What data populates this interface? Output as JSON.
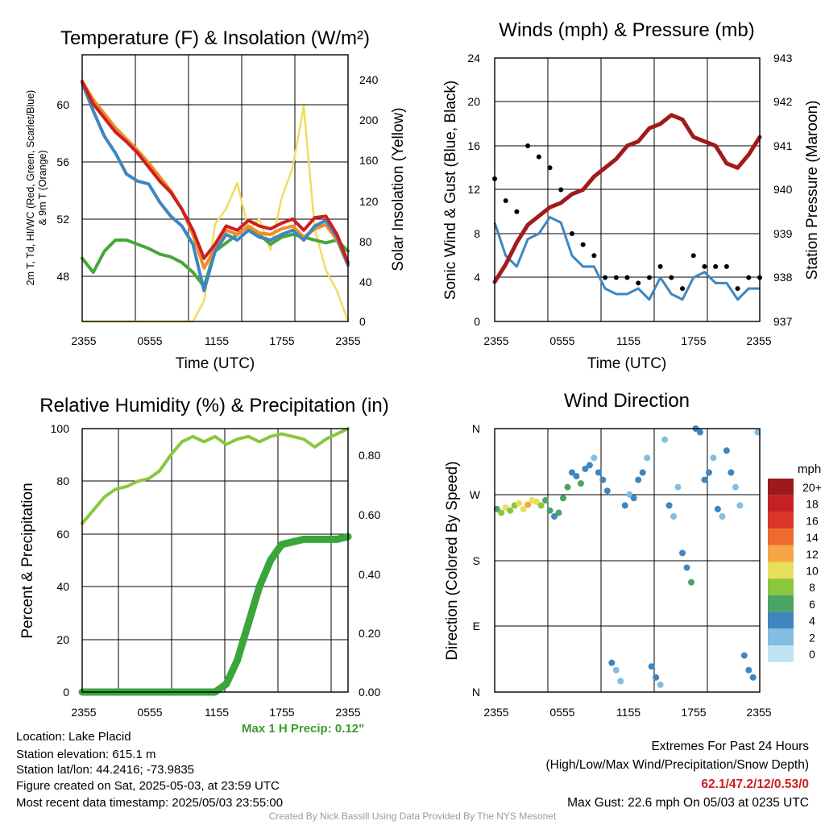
{
  "panels": {
    "temperature": {
      "title": "Temperature (F) & Insolation (W/m²)",
      "ylabel_left": "2m T, Td, HI/WC (Red, Green, Scarlet/Blue) & 9m T (Orange)",
      "ylabel_left_line1": "2m T, Td, HI/WC (Red, Green, Scarlet/Blue)",
      "ylabel_left_line2": "& 9m T (Orange)",
      "ylabel_right": "Solar Insolation (Yellow)",
      "xlabel": "Time (UTC)"
    },
    "winds": {
      "title": "Winds (mph) & Pressure (mb)",
      "ylabel_left": "Sonic Wind & Gust (Blue, Black)",
      "ylabel_right": "Station Pressure (Maroon)",
      "xlabel": "Time (UTC)"
    },
    "humidity": {
      "title": "Relative Humidity (%) & Precipitation (in)",
      "ylabel_left": "Percent & Precipitation",
      "max_precip_note": "Max 1 H Precip: 0.12\""
    },
    "direction": {
      "title": "Wind Direction",
      "ylabel_left": "Direction (Colored By Speed)",
      "legend_title": "mph",
      "legend_labels": [
        "20+",
        "18",
        "16",
        "14",
        "12",
        "10",
        "8",
        "6",
        "4",
        "2",
        "0"
      ],
      "legend_colors": [
        "#9b1a1a",
        "#c42026",
        "#d9352a",
        "#ee6a2e",
        "#f5a544",
        "#e8df5a",
        "#8cc63f",
        "#4aa466",
        "#3f86c0",
        "#84bde3",
        "#bfe3f5"
      ]
    }
  },
  "footer": {
    "location": "Location: Lake Placid",
    "elevation": "Station elevation: 615.1 m",
    "latlon": "Station lat/lon: 44.2416; -73.9835",
    "created": "Figure created on Sat, 2025-05-03, at 23:59 UTC",
    "recent": "Most recent data timestamp: 2025/05/03 23:55:00",
    "extremes_title": "Extremes For Past 24 Hours",
    "extremes_desc": "(High/Low/Max Wind/Precipitation/Snow Depth)",
    "extremes_values": "62.1/47.2/12/0.53/0",
    "max_gust": "Max Gust: 22.6 mph On 05/03 at 0235 UTC",
    "credit": "Created By Nick Bassill Using Data Provided By The NYS Mesonet"
  },
  "chart_data": [
    {
      "type": "line",
      "title": "Temperature (F) & Insolation (W/m²)",
      "xlabel": "Time (UTC)",
      "ylabel": "2m T, Td, HI/WC (Red, Green, Scarlet/Blue) & 9m T (Orange)",
      "y2label": "Solar Insolation (Yellow)",
      "xticks": [
        "2355",
        "0555",
        "1155",
        "1755",
        "2355"
      ],
      "ylim": [
        45,
        64
      ],
      "yticks": [
        48,
        52,
        56,
        60
      ],
      "y2lim": [
        0,
        260
      ],
      "y2ticks": [
        0,
        40,
        80,
        120,
        160,
        200,
        240
      ],
      "x": [
        0,
        1,
        2,
        3,
        4,
        5,
        6,
        7,
        8,
        9,
        10,
        11,
        12,
        13,
        14,
        15,
        16,
        17,
        18,
        19,
        20,
        21,
        22,
        23,
        24
      ],
      "series": [
        {
          "name": "2m T",
          "color": "#cc1f1f",
          "axis": "left",
          "values": [
            62.1,
            60.5,
            59.5,
            58.5,
            57.8,
            57.0,
            56.0,
            55.0,
            54.2,
            53.0,
            51.5,
            49.5,
            50.5,
            51.8,
            51.5,
            52.2,
            51.8,
            51.6,
            52.0,
            52.3,
            51.5,
            52.4,
            52.5,
            51.2,
            49.2
          ]
        },
        {
          "name": "9m T",
          "color": "#f28c28",
          "axis": "left",
          "values": [
            62.1,
            60.8,
            59.8,
            58.8,
            58.0,
            57.2,
            56.3,
            55.3,
            54.3,
            53.0,
            51.2,
            48.8,
            50.2,
            51.5,
            51.2,
            51.8,
            51.3,
            51.2,
            51.6,
            51.8,
            51.0,
            51.6,
            51.9,
            50.8,
            49.0
          ]
        },
        {
          "name": "HI/WC",
          "color": "#3f86c0",
          "axis": "left",
          "values": [
            62.0,
            60.0,
            58.2,
            57.0,
            55.5,
            55.0,
            54.8,
            53.5,
            52.5,
            51.8,
            50.5,
            47.2,
            50.0,
            51.2,
            50.8,
            51.5,
            51.0,
            50.8,
            51.2,
            51.5,
            50.8,
            51.8,
            52.2,
            51.0,
            49.0
          ]
        },
        {
          "name": "Td",
          "color": "#46a739",
          "axis": "left",
          "values": [
            49.5,
            48.5,
            50.0,
            50.8,
            50.8,
            50.5,
            50.2,
            49.8,
            49.6,
            49.2,
            48.5,
            47.5,
            50.0,
            50.6,
            51.2,
            51.8,
            51.2,
            50.5,
            51.0,
            51.2,
            51.0,
            50.8,
            50.6,
            50.8,
            50.0
          ]
        },
        {
          "name": "Solar Insolation",
          "color": "#f2dc5d",
          "axis": "right",
          "values": [
            0,
            0,
            0,
            0,
            0,
            0,
            0,
            0,
            0,
            0,
            0,
            20,
            95,
            110,
            135,
            90,
            100,
            70,
            120,
            150,
            210,
            90,
            50,
            30,
            0
          ]
        }
      ]
    },
    {
      "type": "line",
      "title": "Winds (mph) & Pressure (mb)",
      "xlabel": "Time (UTC)",
      "ylabel": "Sonic Wind & Gust (Blue, Black)",
      "y2label": "Station Pressure (Maroon)",
      "xticks": [
        "2355",
        "0555",
        "1155",
        "1755",
        "2355"
      ],
      "ylim": [
        0,
        24
      ],
      "yticks": [
        0,
        4,
        8,
        12,
        16,
        20,
        24
      ],
      "y2lim": [
        937,
        943
      ],
      "y2ticks": [
        937,
        938,
        939,
        940,
        941,
        942,
        943
      ],
      "x": [
        0,
        1,
        2,
        3,
        4,
        5,
        6,
        7,
        8,
        9,
        10,
        11,
        12,
        13,
        14,
        15,
        16,
        17,
        18,
        19,
        20,
        21,
        22,
        23,
        24
      ],
      "series": [
        {
          "name": "Sonic Wind",
          "color": "#3f86c0",
          "axis": "left",
          "values": [
            9,
            6,
            5,
            7.5,
            8,
            9.5,
            9,
            6,
            5,
            5,
            3,
            2.5,
            2.5,
            3,
            2,
            4,
            2.5,
            2,
            4,
            4.5,
            3.5,
            3.5,
            2,
            3,
            3
          ]
        },
        {
          "name": "Gust",
          "color": "#000000",
          "axis": "left",
          "values": [
            13,
            11,
            10,
            16,
            15,
            14,
            12,
            8,
            7,
            6,
            4,
            4,
            4,
            3.5,
            4,
            5,
            4,
            3,
            6,
            5,
            5,
            5,
            3,
            4,
            4
          ]
        },
        {
          "name": "Station Pressure",
          "color": "#a01b1b",
          "axis": "right",
          "values": [
            937.9,
            938.3,
            938.8,
            939.2,
            939.4,
            939.6,
            939.7,
            939.9,
            940.0,
            940.3,
            940.5,
            940.7,
            941.0,
            941.1,
            941.4,
            941.5,
            941.7,
            941.6,
            941.2,
            941.1,
            941.0,
            940.6,
            940.5,
            940.8,
            941.2
          ]
        }
      ]
    },
    {
      "type": "line",
      "title": "Relative Humidity (%) & Precipitation (in)",
      "ylabel": "Percent & Precipitation",
      "xticks": [
        "2355",
        "0555",
        "1155",
        "1755",
        "2355"
      ],
      "ylim": [
        0,
        100
      ],
      "yticks": [
        0,
        20,
        40,
        60,
        80,
        100
      ],
      "y2ticks": [
        "0.00",
        "0.20",
        "0.40",
        "0.60",
        "0.80"
      ],
      "x": [
        0,
        1,
        2,
        3,
        4,
        5,
        6,
        7,
        8,
        9,
        10,
        11,
        12,
        13,
        14,
        15,
        16,
        17,
        18,
        19,
        20,
        21,
        22,
        23,
        24
      ],
      "series": [
        {
          "name": "Relative Humidity",
          "color": "#8cc63f",
          "axis": "left",
          "values": [
            64,
            69,
            74,
            77,
            78,
            80,
            81,
            84,
            90,
            95,
            97,
            95,
            97,
            94,
            96,
            97,
            95,
            97,
            98,
            97,
            96,
            93,
            96,
            98,
            100
          ]
        },
        {
          "name": "Precipitation",
          "color": "#3aa63a",
          "axis": "right",
          "values": [
            0,
            0,
            0,
            0,
            0,
            0,
            0,
            0,
            0,
            0,
            0,
            0,
            0,
            3,
            12,
            26,
            40,
            50,
            56,
            57,
            58,
            58,
            58,
            58,
            59
          ]
        }
      ]
    },
    {
      "type": "scatter",
      "title": "Wind Direction",
      "ylabel": "Direction (Colored By Speed)",
      "xticks": [
        "2355",
        "0555",
        "1155",
        "1755",
        "2355"
      ],
      "yticks": [
        "N",
        "E",
        "S",
        "W",
        "N"
      ],
      "ylim": [
        0,
        360
      ],
      "colorbar": {
        "title": "mph",
        "labels": [
          "20+",
          "18",
          "16",
          "14",
          "12",
          "10",
          "8",
          "6",
          "4",
          "2",
          "0"
        ]
      },
      "x": [
        0.2,
        0.6,
        1.0,
        1.4,
        1.8,
        2.2,
        2.6,
        3.0,
        3.4,
        3.8,
        4.2,
        4.6,
        5.0,
        5.4,
        5.8,
        6.2,
        6.6,
        7.0,
        7.4,
        7.8,
        8.2,
        8.6,
        9.0,
        9.4,
        9.8,
        10.2,
        10.6,
        11.0,
        11.4,
        11.8,
        12.2,
        12.6,
        13.0,
        13.4,
        13.8,
        14.2,
        14.6,
        15.0,
        15.4,
        15.8,
        16.2,
        16.6,
        17.0,
        17.4,
        17.8,
        18.2,
        18.6,
        19.0,
        19.4,
        19.8,
        20.2,
        20.6,
        21.0,
        21.4,
        21.8,
        22.2,
        22.6,
        23.0,
        23.4,
        23.8
      ],
      "direction": [
        250,
        245,
        252,
        248,
        255,
        258,
        250,
        256,
        262,
        260,
        255,
        262,
        248,
        240,
        245,
        265,
        280,
        300,
        295,
        285,
        305,
        310,
        320,
        300,
        290,
        275,
        40,
        30,
        15,
        255,
        270,
        265,
        290,
        300,
        320,
        35,
        20,
        10,
        345,
        255,
        240,
        280,
        190,
        170,
        150,
        360,
        355,
        290,
        300,
        320,
        250,
        240,
        330,
        300,
        280,
        255,
        50,
        30,
        20,
        355
      ],
      "speed": [
        6,
        8,
        10,
        8,
        7,
        9,
        10,
        11,
        9,
        10,
        8,
        6,
        5,
        4,
        6,
        5,
        6,
        4,
        3,
        5,
        4,
        3,
        2,
        3,
        4,
        3,
        3,
        2,
        2,
        3,
        2,
        3,
        4,
        3,
        2,
        4,
        3,
        2,
        2,
        3,
        1,
        1,
        3,
        4,
        5,
        4,
        3,
        4,
        3,
        2,
        3,
        2,
        4,
        3,
        2,
        1,
        3,
        4,
        3,
        2
      ]
    }
  ]
}
